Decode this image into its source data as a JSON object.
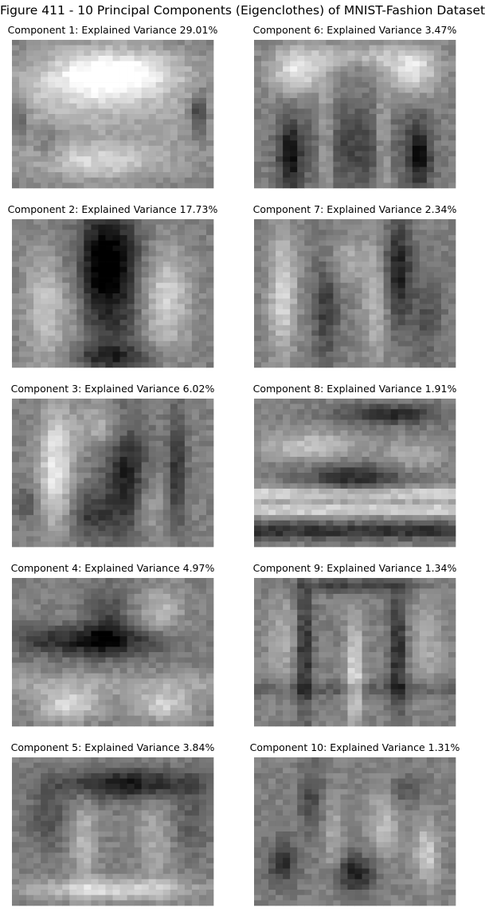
{
  "figure": {
    "title": "Figure 411 - 10 Principal Components (Eigenclothes) of MNIST-Fashion Dataset"
  },
  "components": [
    {
      "label": "Component 1: Explained Variance 29.01%",
      "explained_variance_percent": 29.01
    },
    {
      "label": "Component 2: Explained Variance 17.73%",
      "explained_variance_percent": 17.73
    },
    {
      "label": "Component 3: Explained Variance 6.02%",
      "explained_variance_percent": 6.02
    },
    {
      "label": "Component 4: Explained Variance 4.97%",
      "explained_variance_percent": 4.97
    },
    {
      "label": "Component 5: Explained Variance 3.84%",
      "explained_variance_percent": 3.84
    },
    {
      "label": "Component 6: Explained Variance 3.47%",
      "explained_variance_percent": 3.47
    },
    {
      "label": "Component 7: Explained Variance 2.34%",
      "explained_variance_percent": 2.34
    },
    {
      "label": "Component 8: Explained Variance 1.91%",
      "explained_variance_percent": 1.91
    },
    {
      "label": "Component 9: Explained Variance 1.34%",
      "explained_variance_percent": 1.34
    },
    {
      "label": "Component 10: Explained Variance 1.31%",
      "explained_variance_percent": 1.31
    }
  ],
  "colormap": "gray"
}
